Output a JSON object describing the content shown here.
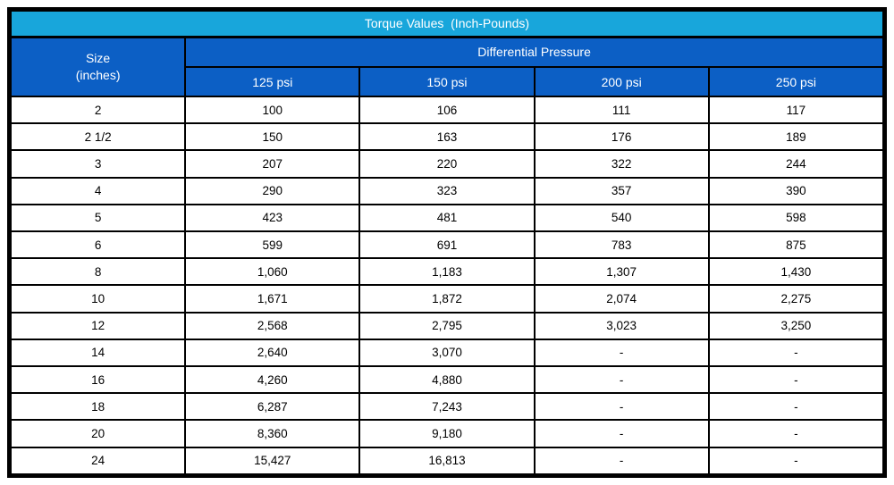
{
  "colors": {
    "title_bg": "#18A6DB",
    "header_bg": "#0C5FC5",
    "border": "#000000",
    "header_text": "#FFFFFF",
    "cell_bg": "#FFFFFF",
    "cell_text": "#000000"
  },
  "table": {
    "title": "Torque Values  (Inch-Pounds)",
    "size_header": "Size\n(inches)",
    "group_header": "Differential Pressure",
    "columns": [
      "125 psi",
      "150 psi",
      "200 psi",
      "250 psi"
    ],
    "rows": [
      {
        "size": "2",
        "values": [
          "100",
          "106",
          "111",
          "117"
        ]
      },
      {
        "size": "2 1/2",
        "values": [
          "150",
          "163",
          "176",
          "189"
        ]
      },
      {
        "size": "3",
        "values": [
          "207",
          "220",
          "322",
          "244"
        ]
      },
      {
        "size": "4",
        "values": [
          "290",
          "323",
          "357",
          "390"
        ]
      },
      {
        "size": "5",
        "values": [
          "423",
          "481",
          "540",
          "598"
        ]
      },
      {
        "size": "6",
        "values": [
          "599",
          "691",
          "783",
          "875"
        ]
      },
      {
        "size": "8",
        "values": [
          "1,060",
          "1,183",
          "1,307",
          "1,430"
        ]
      },
      {
        "size": "10",
        "values": [
          "1,671",
          "1,872",
          "2,074",
          "2,275"
        ]
      },
      {
        "size": "12",
        "values": [
          "2,568",
          "2,795",
          "3,023",
          "3,250"
        ]
      },
      {
        "size": "14",
        "values": [
          "2,640",
          "3,070",
          "-",
          "-"
        ]
      },
      {
        "size": "16",
        "values": [
          "4,260",
          "4,880",
          "-",
          "-"
        ]
      },
      {
        "size": "18",
        "values": [
          "6,287",
          "7,243",
          "-",
          "-"
        ]
      },
      {
        "size": "20",
        "values": [
          "8,360",
          "9,180",
          "-",
          "-"
        ]
      },
      {
        "size": "24",
        "values": [
          "15,427",
          "16,813",
          "-",
          "-"
        ]
      }
    ]
  }
}
